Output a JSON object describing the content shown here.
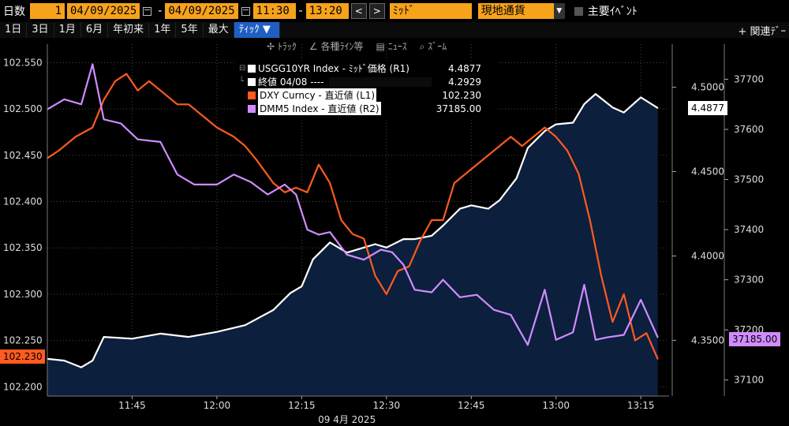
{
  "topbar": {
    "period_label": "日数",
    "period_value": "1",
    "start_date": "04/09/2025",
    "date_sep": "-",
    "end_date": "04/09/2025",
    "start_time": "11:30",
    "time_sep": "-",
    "end_time": "13:20",
    "prev": "<",
    "next": ">",
    "price_field": "ﾐｯﾄﾞ",
    "currency": "現地通貨",
    "events_label": "主要ｲﾍﾞﾝﾄ"
  },
  "ranges": [
    "1日",
    "3日",
    "1月",
    "6月",
    "年初来",
    "1年",
    "5年",
    "最大"
  ],
  "active_range": "ﾃｨｯｸ ▼",
  "related": "+ 関連ﾃﾞｰ",
  "tools": [
    "✢ ﾄﾗｯｸ",
    "∠ 各種ﾗｲﾝ等",
    "▤ ﾆｭｰｽ",
    "⌕ ｽﾞｰﾑ"
  ],
  "legend": [
    {
      "name": "USGG10YR Index - ﾐｯﾄﾞ価格 (R1)",
      "value": "4.4877",
      "color": "#ffffff",
      "boxed": false
    },
    {
      "name": "終値 04/08 ----",
      "value": "4.2929",
      "color": "#ffffff",
      "boxed": false
    },
    {
      "name": "DXY Curncy - 直近値 (L1)",
      "value": "102.230",
      "color": "#ff5a1f",
      "boxed": true
    },
    {
      "name": "DMM5 Index - 直近値 (R2)",
      "value": "37185.00",
      "color": "#d08cff",
      "boxed": true
    }
  ],
  "tags": {
    "dxy_last": "102.230",
    "ust_last": "4.4877",
    "dmm_last": "37185.00"
  },
  "chart_data": {
    "type": "line",
    "x_date_label": "09 4月 2025",
    "x_ticks": [
      "11:45",
      "12:00",
      "12:15",
      "12:30",
      "12:45",
      "13:00",
      "13:15"
    ],
    "x_range": [
      "11:30",
      "13:20"
    ],
    "axes": {
      "L1": {
        "ticks": [
          "102.200",
          "102.250",
          "102.300",
          "102.350",
          "102.400",
          "102.450",
          "102.500",
          "102.550"
        ],
        "range": [
          102.19,
          102.57
        ]
      },
      "R1": {
        "ticks": [
          "4.3500",
          "4.4000",
          "4.4500",
          "4.5000"
        ],
        "range": [
          4.317,
          4.5255
        ]
      },
      "R2": {
        "ticks": [
          "37100",
          "37200",
          "37300",
          "37400",
          "37500",
          "37600",
          "37700"
        ],
        "range": [
          37068,
          37770
        ]
      }
    },
    "grid": true,
    "series": [
      {
        "name": "USGG10YR Index",
        "axis": "R1",
        "style": "area",
        "color": "#ffffff",
        "fill": "#0c1f3d",
        "x": [
          "11:30",
          "11:33",
          "11:36",
          "11:38",
          "11:40",
          "11:45",
          "11:50",
          "11:55",
          "12:00",
          "12:05",
          "12:10",
          "12:13",
          "12:15",
          "12:17",
          "12:20",
          "12:23",
          "12:25",
          "12:28",
          "12:30",
          "12:33",
          "12:35",
          "12:38",
          "12:40",
          "12:43",
          "12:45",
          "12:48",
          "12:50",
          "12:53",
          "12:55",
          "12:58",
          "13:00",
          "13:03",
          "13:05",
          "13:07",
          "13:10",
          "13:12",
          "13:15",
          "13:18"
        ],
        "values": [
          4.339,
          4.338,
          4.334,
          4.338,
          4.352,
          4.351,
          4.354,
          4.352,
          4.355,
          4.359,
          4.368,
          4.378,
          4.382,
          4.398,
          4.408,
          4.402,
          4.404,
          4.407,
          4.405,
          4.41,
          4.41,
          4.412,
          4.418,
          4.428,
          4.43,
          4.428,
          4.433,
          4.446,
          4.464,
          4.474,
          4.478,
          4.479,
          4.49,
          4.496,
          4.488,
          4.485,
          4.494,
          4.4877
        ]
      },
      {
        "name": "DXY Curncy",
        "axis": "L1",
        "style": "line",
        "color": "#ff5a1f",
        "x": [
          "11:30",
          "11:32",
          "11:35",
          "11:38",
          "11:40",
          "11:42",
          "11:44",
          "11:46",
          "11:48",
          "11:50",
          "11:53",
          "11:55",
          "11:58",
          "12:00",
          "12:03",
          "12:05",
          "12:07",
          "12:10",
          "12:12",
          "12:14",
          "12:16",
          "12:18",
          "12:20",
          "12:22",
          "12:24",
          "12:26",
          "12:28",
          "12:30",
          "12:32",
          "12:34",
          "12:36",
          "12:38",
          "12:40",
          "12:42",
          "12:44",
          "12:46",
          "12:48",
          "12:50",
          "12:52",
          "12:54",
          "12:56",
          "12:58",
          "13:00",
          "13:02",
          "13:04",
          "13:06",
          "13:08",
          "13:10",
          "13:12",
          "13:14",
          "13:16",
          "13:18"
        ],
        "values": [
          102.447,
          102.455,
          102.47,
          102.48,
          102.51,
          102.53,
          102.538,
          102.52,
          102.53,
          102.52,
          102.505,
          102.505,
          102.49,
          102.48,
          102.47,
          102.46,
          102.445,
          102.42,
          102.41,
          102.415,
          102.41,
          102.44,
          102.42,
          102.38,
          102.365,
          102.36,
          102.32,
          102.3,
          102.325,
          102.33,
          102.358,
          102.38,
          102.38,
          102.42,
          102.43,
          102.44,
          102.45,
          102.46,
          102.47,
          102.46,
          102.47,
          102.48,
          102.47,
          102.455,
          102.43,
          102.38,
          102.32,
          102.27,
          102.3,
          102.25,
          102.258,
          102.23
        ]
      },
      {
        "name": "DMM5 Index",
        "axis": "R2",
        "style": "line",
        "color": "#d08cff",
        "x": [
          "11:30",
          "11:33",
          "11:36",
          "11:38",
          "11:40",
          "11:43",
          "11:46",
          "11:50",
          "11:53",
          "11:56",
          "12:00",
          "12:03",
          "12:06",
          "12:09",
          "12:12",
          "12:14",
          "12:16",
          "12:18",
          "12:20",
          "12:23",
          "12:26",
          "12:29",
          "12:31",
          "12:33",
          "12:35",
          "12:38",
          "12:40",
          "12:43",
          "12:46",
          "12:49",
          "12:52",
          "12:55",
          "12:58",
          "13:00",
          "13:03",
          "13:05",
          "13:07",
          "13:09",
          "13:12",
          "13:15",
          "13:18"
        ],
        "values": [
          37640,
          37660,
          37650,
          37730,
          37620,
          37612,
          37580,
          37575,
          37510,
          37490,
          37490,
          37510,
          37495,
          37470,
          37490,
          37470,
          37400,
          37390,
          37395,
          37350,
          37340,
          37360,
          37355,
          37330,
          37280,
          37275,
          37300,
          37265,
          37270,
          37240,
          37230,
          37170,
          37280,
          37180,
          37195,
          37290,
          37180,
          37185,
          37190,
          37260,
          37185
        ]
      }
    ],
    "reference_line": {
      "axis": "R1",
      "value": 4.2929,
      "label": "終値 04/08"
    }
  }
}
